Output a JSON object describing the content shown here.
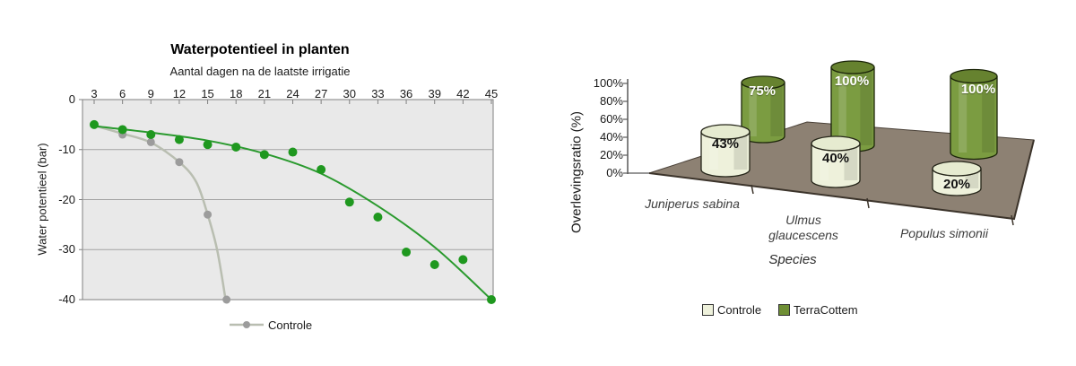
{
  "page": {
    "background": "#ffffff"
  },
  "chart_data": [
    {
      "type": "scatter",
      "title": "Waterpotentieel in planten",
      "xlabel": "Aantal dagen na de laatste irrigatie",
      "ylabel": "Water potentieel (bar)",
      "x_axis_position": "top",
      "xlim": [
        1.5,
        45
      ],
      "ylim": [
        -40,
        0
      ],
      "x_ticks": [
        3,
        6,
        9,
        12,
        15,
        18,
        21,
        24,
        27,
        30,
        33,
        36,
        39,
        42,
        45
      ],
      "y_ticks": [
        0,
        -10,
        -20,
        -30,
        -40
      ],
      "y_tick_labels": [
        "0",
        "-10",
        "-20",
        "-30",
        "-40"
      ],
      "grid": true,
      "plot_bg": "#e9e9e9",
      "legend_position": "bottom",
      "legend_entries": [
        "Controle"
      ],
      "series": [
        {
          "name": "Controle",
          "type": "line+markers",
          "marker_color": "#9c9c9c",
          "line_color": "#b9beb1",
          "x": [
            3,
            6,
            9,
            12,
            15,
            17
          ],
          "y": [
            -5,
            -7,
            -8.5,
            -12.5,
            -23,
            -40
          ]
        },
        {
          "name": "TerraCottem",
          "type": "markers+trendline",
          "in_legend": false,
          "marker_color": "#1f981f",
          "line_color": "#2a9a2e",
          "x": [
            3,
            6,
            9,
            12,
            15,
            18,
            21,
            24,
            27,
            30,
            33,
            36,
            39,
            42,
            45
          ],
          "y": [
            -5,
            -6,
            -7,
            -8,
            -9,
            -9.5,
            -11,
            -10.5,
            -14,
            -20.5,
            -23.5,
            -30.5,
            -33,
            -32,
            -40
          ]
        }
      ]
    },
    {
      "type": "bar",
      "subtype": "3d-cylinder",
      "xlabel": "Species",
      "ylabel": "Overlevingsratio (%)",
      "categories": [
        "Juniperus sabina",
        "Ulmus glaucescens",
        "Populus simonii"
      ],
      "category_display_lines": [
        [
          "Juniperus sabina"
        ],
        [
          "Ulmus",
          "glaucescens"
        ],
        [
          "Populus simonii"
        ]
      ],
      "ylim": [
        0,
        100
      ],
      "y_ticks_display": [
        "100%",
        "80%",
        "60%",
        "40%",
        "20%",
        "0%"
      ],
      "floor_color": "#8d8173",
      "legend_position": "bottom",
      "series": [
        {
          "name": "Controle",
          "color": "#eef1db",
          "values": [
            43,
            40,
            20
          ],
          "labels": [
            "43%",
            "40%",
            "20%"
          ]
        },
        {
          "name": "TerraCottem",
          "color": "#7b9c41",
          "values": [
            75,
            100,
            100
          ],
          "labels": [
            "75%",
            "100%",
            "100%"
          ]
        }
      ]
    }
  ]
}
